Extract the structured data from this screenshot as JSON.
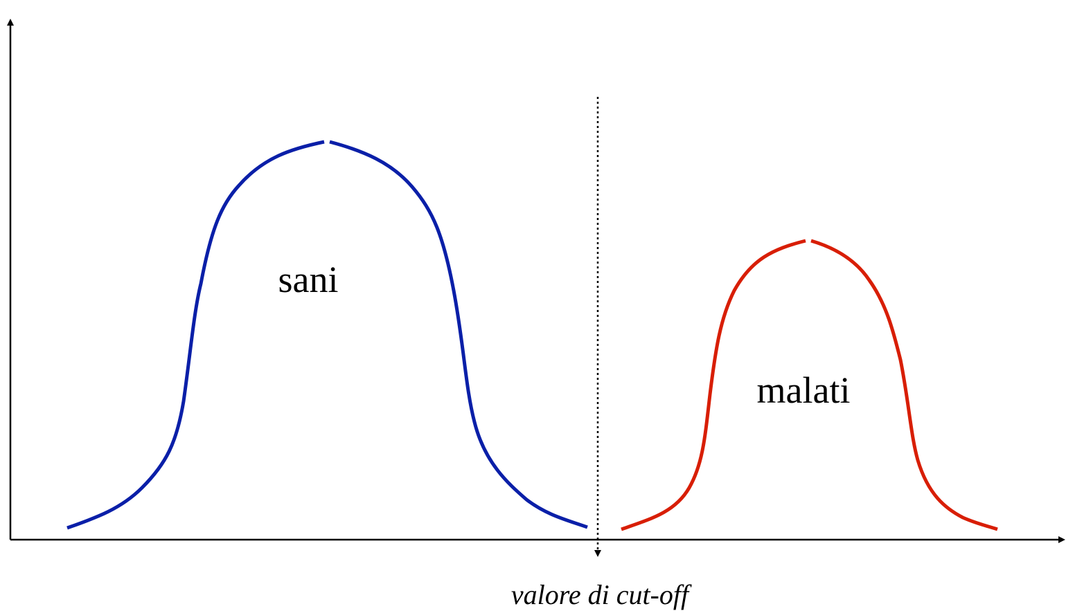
{
  "curves": [
    {
      "label": "sani"
    },
    {
      "label": "malati"
    }
  ],
  "cutoff": {
    "label": "valore di cut-off"
  }
}
